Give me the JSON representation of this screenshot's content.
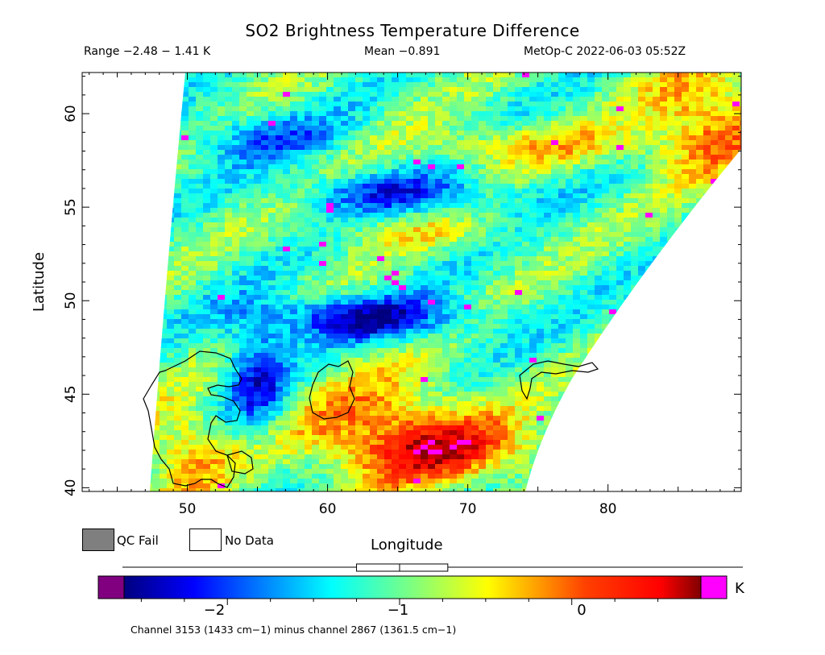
{
  "title": "SO2 Brightness Temperature Difference",
  "subtitle": {
    "range": "Range −2.48 − 1.41 K",
    "mean": "Mean −0.891",
    "satellite_time": "MetOp-C 2022-06-03 05:52Z"
  },
  "map": {
    "xlabel": "Longitude",
    "ylabel": "Latitude",
    "x_ticks": [
      "50",
      "60",
      "70",
      "80"
    ],
    "y_ticks": [
      "40",
      "45",
      "50",
      "55",
      "60"
    ],
    "lon_range": [
      42.5,
      89.5
    ],
    "lat_range": [
      39.8,
      62.2
    ],
    "coastlines": "Caspian Sea, Aral Sea, Lake Balkhash"
  },
  "legend": {
    "qc_fail": "QC Fail",
    "no_data": "No Data",
    "qc_fail_color": "#7f7f7f",
    "no_data_color": "#ffffff"
  },
  "colorbar": {
    "unit": "K",
    "tick_labels": [
      "−2",
      "−1",
      "0"
    ],
    "tick_values": [
      -2,
      -1,
      0
    ],
    "min": -2.6,
    "max": 0.75,
    "under_color": "#800080",
    "over_color": "#ff00ff",
    "boxplot": {
      "whisker_low": -2.48,
      "q1": -1.25,
      "median": -1.0,
      "q3": -0.72,
      "whisker_high": 1.41
    }
  },
  "footnote": "Channel 3153 (1433 cm−1) minus channel 2867 (1361.5 cm−1)"
}
